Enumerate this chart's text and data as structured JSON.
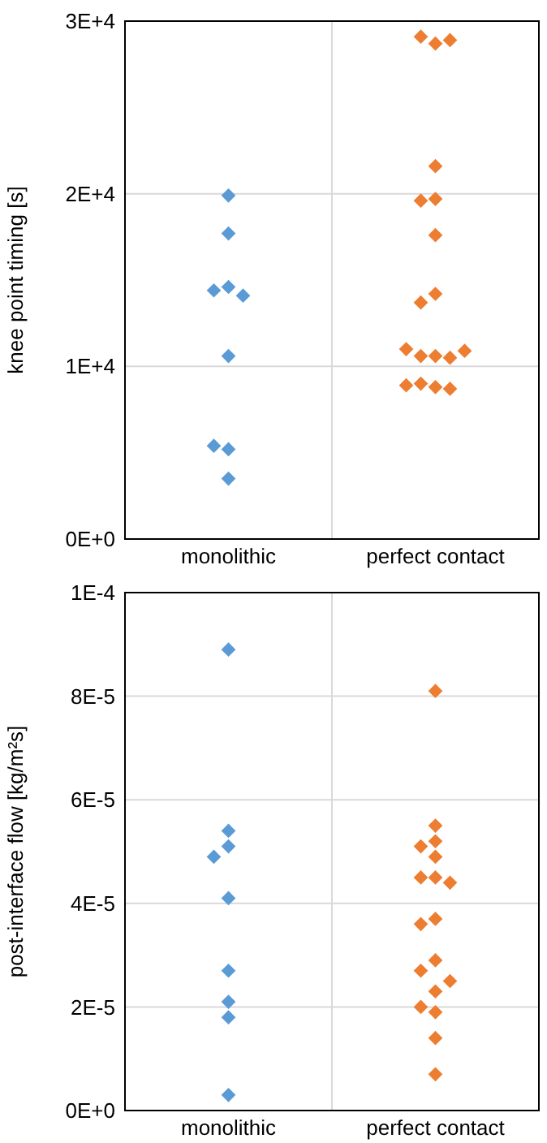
{
  "chart_data": [
    {
      "type": "scatter",
      "ylabel": "knee point timing [s]",
      "categories": [
        "monolithic",
        "perfect contact"
      ],
      "ylim": [
        0,
        30000
      ],
      "yticks": [
        {
          "value": 0,
          "label": "0E+0"
        },
        {
          "value": 10000,
          "label": "1E+4"
        },
        {
          "value": 20000,
          "label": "2E+4"
        },
        {
          "value": 30000,
          "label": "3E+4"
        }
      ],
      "grid": true,
      "marker": "diamond",
      "series": [
        {
          "color": "#5b9bd5",
          "x": [
            "monolithic",
            "monolithic",
            "monolithic",
            "monolithic",
            "monolithic",
            "monolithic",
            "monolithic",
            "monolithic",
            "monolithic"
          ],
          "values": [
            19900,
            17700,
            14600,
            14400,
            14100,
            10600,
            5200,
            5400,
            3500
          ]
        },
        {
          "color": "#ed7d31",
          "x": [
            "perfect contact",
            "perfect contact",
            "perfect contact",
            "perfect contact",
            "perfect contact",
            "perfect contact",
            "perfect contact",
            "perfect contact",
            "perfect contact",
            "perfect contact",
            "perfect contact",
            "perfect contact",
            "perfect contact",
            "perfect contact",
            "perfect contact",
            "perfect contact",
            "perfect contact",
            "perfect contact"
          ],
          "values": [
            28700,
            29100,
            28900,
            21600,
            19700,
            19600,
            17600,
            14200,
            13700,
            10600,
            10600,
            10500,
            11000,
            10900,
            8800,
            9000,
            8700,
            8900
          ]
        }
      ]
    },
    {
      "type": "scatter",
      "ylabel": "post-interface flow [kg/m²s]",
      "categories": [
        "monolithic",
        "perfect contact"
      ],
      "ylim": [
        0,
        0.0001
      ],
      "yticks": [
        {
          "value": 0,
          "label": "0E+0"
        },
        {
          "value": 2e-05,
          "label": "2E-5"
        },
        {
          "value": 4e-05,
          "label": "4E-5"
        },
        {
          "value": 6e-05,
          "label": "6E-5"
        },
        {
          "value": 8e-05,
          "label": "8E-5"
        },
        {
          "value": 0.0001,
          "label": "1E-4"
        }
      ],
      "grid": true,
      "marker": "diamond",
      "series": [
        {
          "color": "#5b9bd5",
          "x": [
            "monolithic",
            "monolithic",
            "monolithic",
            "monolithic",
            "monolithic",
            "monolithic",
            "monolithic",
            "monolithic",
            "monolithic"
          ],
          "values": [
            8.9e-05,
            5.4e-05,
            5.1e-05,
            4.9e-05,
            4.1e-05,
            2.7e-05,
            2.1e-05,
            1.8e-05,
            3e-06
          ]
        },
        {
          "color": "#ed7d31",
          "x": [
            "perfect contact",
            "perfect contact",
            "perfect contact",
            "perfect contact",
            "perfect contact",
            "perfect contact",
            "perfect contact",
            "perfect contact",
            "perfect contact",
            "perfect contact",
            "perfect contact",
            "perfect contact",
            "perfect contact",
            "perfect contact",
            "perfect contact",
            "perfect contact",
            "perfect contact",
            "perfect contact"
          ],
          "values": [
            8.1e-05,
            5.5e-05,
            5.2e-05,
            5.1e-05,
            4.9e-05,
            4.5e-05,
            4.5e-05,
            4.4e-05,
            3.7e-05,
            3.6e-05,
            2.9e-05,
            2.7e-05,
            2.3e-05,
            2.5e-05,
            1.9e-05,
            2e-05,
            1.4e-05,
            7e-06
          ]
        }
      ]
    }
  ]
}
